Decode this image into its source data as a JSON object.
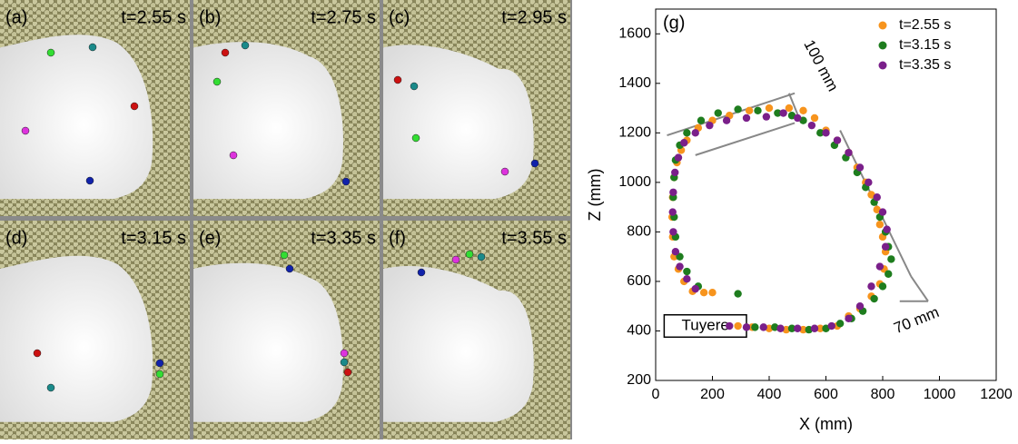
{
  "panels": [
    {
      "label": "(a)",
      "time": "t=2.55 s"
    },
    {
      "label": "(b)",
      "time": "t=2.75 s"
    },
    {
      "label": "(c)",
      "time": "t=2.95 s"
    },
    {
      "label": "(d)",
      "time": "t=3.15 s"
    },
    {
      "label": "(e)",
      "time": "t=3.35 s"
    },
    {
      "label": "(f)",
      "time": "t=3.55 s"
    }
  ],
  "chart_data": {
    "type": "scatter",
    "panel_label": "(g)",
    "x_label": "X (mm)",
    "y_label": "Z (mm)",
    "xlim": [
      0,
      1200
    ],
    "ylim": [
      200,
      1700
    ],
    "xticks": [
      0,
      200,
      400,
      600,
      800,
      1000,
      1200
    ],
    "yticks": [
      200,
      400,
      600,
      800,
      1000,
      1200,
      1400,
      1600
    ],
    "legend": "top-right",
    "annotations": [
      "100 mm",
      "70 mm",
      "Tuyere"
    ],
    "series": [
      {
        "name": "t=2.55 s",
        "color": "#f7941d",
        "x": [
          130,
          100,
          80,
          65,
          60,
          58,
          60,
          65,
          75,
          90,
          110,
          150,
          200,
          260,
          330,
          400,
          470,
          520,
          560,
          600,
          640,
          680,
          710,
          740,
          760,
          780,
          790,
          800,
          810,
          805,
          790,
          760,
          720,
          680,
          640,
          580,
          520,
          460,
          400,
          340,
          290,
          200,
          170
        ],
        "values": [
          560,
          600,
          650,
          700,
          780,
          860,
          940,
          1020,
          1080,
          1130,
          1170,
          1220,
          1250,
          1270,
          1290,
          1300,
          1300,
          1290,
          1260,
          1210,
          1170,
          1120,
          1060,
          1000,
          950,
          890,
          830,
          780,
          720,
          650,
          590,
          540,
          490,
          460,
          420,
          410,
          405,
          405,
          410,
          415,
          420,
          555,
          555
        ]
      },
      {
        "name": "t=3.15 s",
        "color": "#1e7d1e",
        "x": [
          290,
          150,
          110,
          85,
          70,
          65,
          62,
          65,
          70,
          85,
          110,
          160,
          220,
          290,
          360,
          430,
          480,
          520,
          580,
          630,
          670,
          710,
          740,
          770,
          790,
          810,
          820,
          830,
          820,
          800,
          770,
          730,
          690,
          650,
          600,
          540,
          480,
          420,
          350
        ],
        "values": [
          550,
          580,
          640,
          700,
          780,
          860,
          940,
          1020,
          1090,
          1150,
          1200,
          1250,
          1280,
          1295,
          1290,
          1280,
          1270,
          1250,
          1200,
          1150,
          1100,
          1040,
          980,
          920,
          860,
          800,
          740,
          690,
          630,
          580,
          530,
          480,
          450,
          430,
          410,
          405,
          410,
          415,
          415
        ]
      },
      {
        "name": "t=3.35 s",
        "color": "#7a1f8a",
        "x": [
          140,
          110,
          85,
          70,
          62,
          60,
          62,
          68,
          80,
          100,
          140,
          190,
          250,
          320,
          390,
          450,
          500,
          550,
          600,
          640,
          680,
          720,
          750,
          780,
          800,
          815,
          810,
          790,
          760,
          720,
          680,
          620,
          560,
          500,
          440,
          380,
          320,
          260
        ],
        "values": [
          570,
          610,
          660,
          720,
          800,
          880,
          960,
          1040,
          1100,
          1160,
          1200,
          1230,
          1250,
          1260,
          1265,
          1280,
          1260,
          1230,
          1200,
          1170,
          1120,
          1060,
          1000,
          940,
          880,
          810,
          740,
          660,
          580,
          500,
          450,
          420,
          410,
          410,
          410,
          415,
          415,
          420
        ]
      }
    ]
  }
}
